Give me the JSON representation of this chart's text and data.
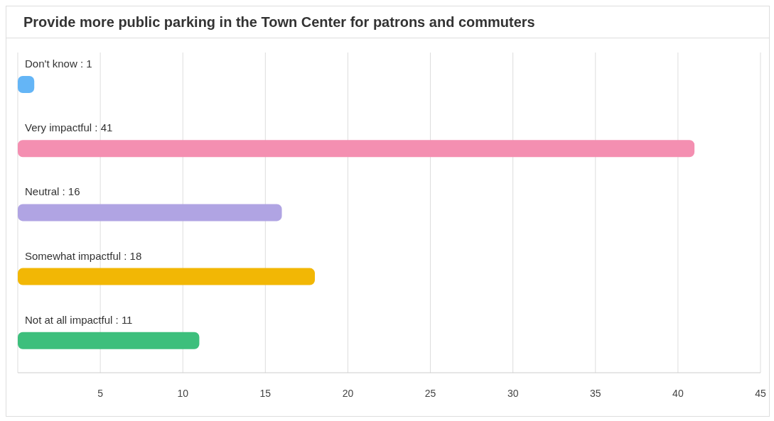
{
  "chart_data": {
    "type": "bar",
    "orientation": "horizontal",
    "title": "Provide more public parking in the Town Center for patrons and commuters",
    "categories": [
      "Don't know : 1",
      "Very impactful : 41",
      "Neutral : 16",
      "Somewhat impactful : 18",
      "Not at all impactful : 11"
    ],
    "values": [
      1,
      41,
      16,
      18,
      11
    ],
    "colors": [
      "#64b5f6",
      "#f48fb1",
      "#b0a4e3",
      "#f2b705",
      "#3dbf7c"
    ],
    "xlim": [
      0,
      45
    ],
    "xticks": [
      5,
      10,
      15,
      20,
      25,
      30,
      35,
      40,
      45
    ],
    "grid": "x"
  }
}
